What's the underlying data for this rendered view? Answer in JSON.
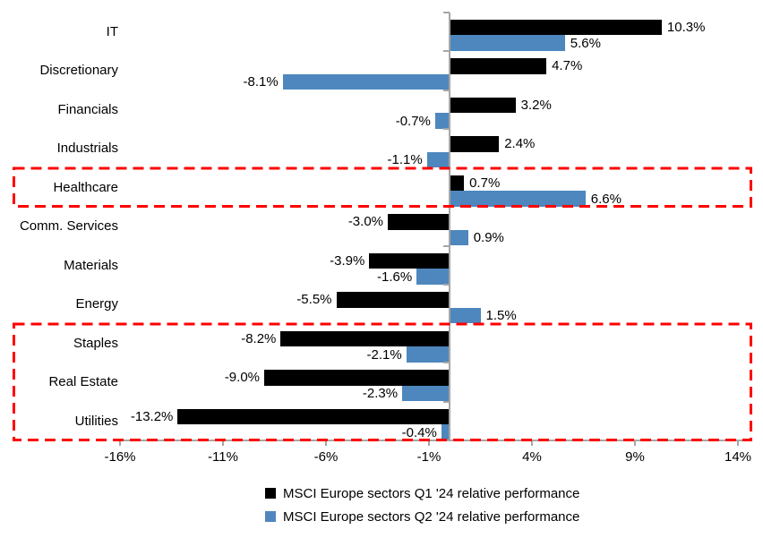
{
  "chart_data": {
    "type": "bar",
    "orientation": "horizontal",
    "categories": [
      "IT",
      "Discretionary",
      "Financials",
      "Industrials",
      "Healthcare",
      "Comm. Services",
      "Materials",
      "Energy",
      "Staples",
      "Real Estate",
      "Utilities"
    ],
    "series": [
      {
        "name": "MSCI Europe sectors Q1 '24 relative performance",
        "color": "#000000",
        "values": [
          10.3,
          4.7,
          3.2,
          2.4,
          0.7,
          -3.0,
          -3.9,
          -5.5,
          -8.2,
          -9.0,
          -13.2
        ],
        "labels": [
          "10.3%",
          "4.7%",
          "3.2%",
          "2.4%",
          "0.7%",
          "-3.0%",
          "-3.9%",
          "-5.5%",
          "-8.2%",
          "-9.0%",
          "-13.2%"
        ]
      },
      {
        "name": "MSCI Europe sectors Q2 '24 relative performance",
        "color": "#4E87BE",
        "values": [
          5.6,
          -8.1,
          -0.7,
          -1.1,
          6.6,
          0.9,
          -1.6,
          1.5,
          -2.1,
          -2.3,
          -0.4
        ],
        "labels": [
          "5.6%",
          "-8.1%",
          "-0.7%",
          "-1.1%",
          "6.6%",
          "0.9%",
          "-1.6%",
          "1.5%",
          "-2.1%",
          "-2.3%",
          "-0.4%"
        ]
      }
    ],
    "x_ticks": [
      {
        "value": -16,
        "label": "-16%"
      },
      {
        "value": -11,
        "label": "-11%"
      },
      {
        "value": -6,
        "label": "-6%"
      },
      {
        "value": -1,
        "label": "-1%"
      },
      {
        "value": 4,
        "label": "4%"
      },
      {
        "value": 9,
        "label": "9%"
      },
      {
        "value": 14,
        "label": "14%"
      }
    ],
    "xlim": [
      -16,
      14
    ],
    "grid": false,
    "axis_color": "#A6A6A6",
    "legend_position": "bottom",
    "highlight_boxes": [
      {
        "categories": [
          "Healthcare"
        ],
        "color": "#FF0000",
        "style": "dashed"
      },
      {
        "categories": [
          "Staples",
          "Real Estate",
          "Utilities"
        ],
        "color": "#FF0000",
        "style": "dashed"
      }
    ]
  }
}
